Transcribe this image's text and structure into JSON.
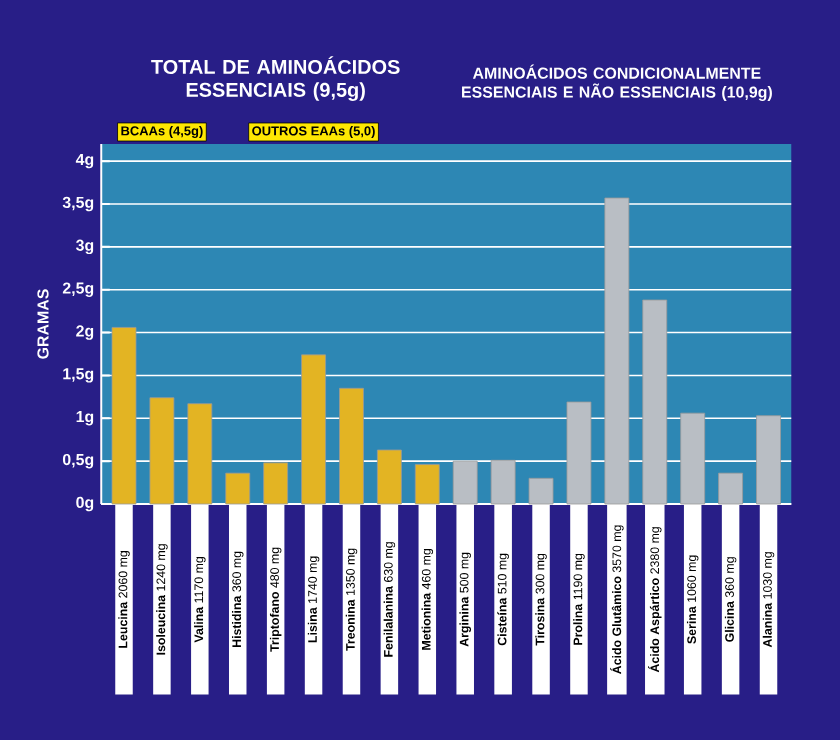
{
  "chart_data": {
    "type": "bar",
    "annotations": [
      "TOTAL DE AMINOÁCIDOS ESSENCIAIS (9,5g)",
      "BCAAs (4,5g)",
      "OUTROS EAAs (5,0)",
      "AMINOÁCIDOS CONDICIONALMENTE ESSENCIAIS E NÃO ESSENCIAIS (10,9g)"
    ],
    "ylabel": "GRAMAS",
    "categories": [
      "**Leucina** 2060 mg",
      "**Isoleucina** 1240 mg",
      "**Valina** 1170 mg",
      "**Histidina** 360 mg",
      "**Triptofano** 480 mg",
      "**Lisina** 1740 mg",
      "**Treonina** 1350 mg",
      "**Fenilalanina** 630 mg",
      "**Metionina** 460 mg",
      "**Arginina** 500 mg",
      "**Cisteína** 510 mg",
      "**Tirosina** 300 mg",
      "**Prolina** 1190 mg",
      "**Ácido Glutâmico** 3570 mg",
      "**Ácido Aspártico** 2380 mg",
      "**Serina** 1060 mg",
      "**Glicina** 360 mg",
      "**Alanina** 1030 mg"
    ],
    "values": [
      2.06,
      1.24,
      1.17,
      0.36,
      0.48,
      1.74,
      1.35,
      0.63,
      0.46,
      0.5,
      0.51,
      0.3,
      1.19,
      3.57,
      2.38,
      1.06,
      0.36,
      1.03
    ],
    "colors": [
      "#e3b423",
      "#e3b423",
      "#e3b423",
      "#e3b423",
      "#e3b423",
      "#e3b423",
      "#e3b423",
      "#e3b423",
      "#e3b423",
      "#b9bec4",
      "#b9bec4",
      "#b9bec4",
      "#b9bec4",
      "#b9bec4",
      "#b9bec4",
      "#b9bec4",
      "#b9bec4",
      "#b9bec4"
    ],
    "ylim": [
      0,
      4.2
    ],
    "yticks": [
      {
        "value": 0,
        "label": "0g"
      },
      {
        "value": 0.5,
        "label": "0,5g"
      },
      {
        "value": 1,
        "label": "1g"
      },
      {
        "value": 1.5,
        "label": "1,5g"
      },
      {
        "value": 2,
        "label": "2g"
      },
      {
        "value": 2.5,
        "label": "2,5g"
      },
      {
        "value": 3,
        "label": "3g"
      },
      {
        "value": 3.5,
        "label": "3,5g"
      },
      {
        "value": 4,
        "label": "4g"
      }
    ],
    "grid": "y"
  }
}
